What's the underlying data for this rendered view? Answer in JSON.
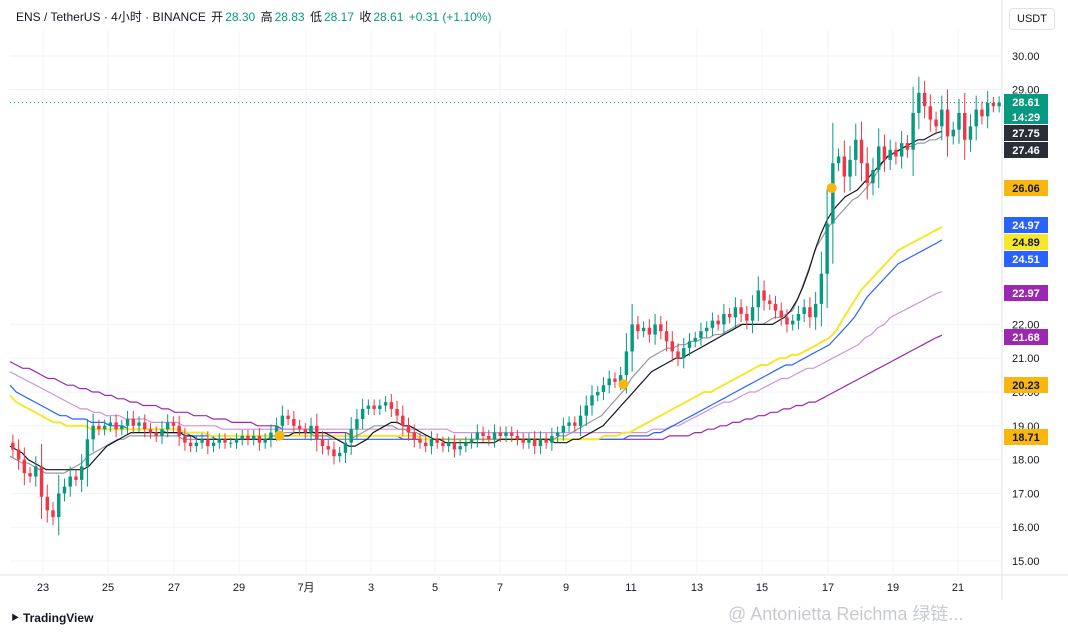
{
  "header": {
    "symbol": "ENS / TetherUS · 4小时 · BINANCE",
    "open_label": "开",
    "open": "28.30",
    "high_label": "高",
    "high": "28.83",
    "low_label": "低",
    "low": "28.17",
    "close_label": "收",
    "close": "28.61",
    "change": "+0.31 (+1.10%)"
  },
  "currency_button": "USDT",
  "branding": "TradingView",
  "watermark": "@ Antonietta Reichma 绿链...",
  "colors": {
    "up": "#089981",
    "down": "#f23645",
    "ema_gray": "#000000",
    "ema_yellow": "#f5e72a",
    "ema_blue": "#2962ff",
    "ema_pink": "#ce93d8",
    "ema_purple": "#9c27b0",
    "highlight": "#f7b70f"
  },
  "chart_data": {
    "type": "candlestick",
    "x_ticks": [
      "23",
      "25",
      "27",
      "29",
      "7月",
      "3",
      "5",
      "7",
      "9",
      "11",
      "13",
      "15",
      "17",
      "19",
      "21"
    ],
    "y_ticks": [
      "15.00",
      "16.00",
      "17.00",
      "18.00",
      "19.00",
      "20.00",
      "21.00",
      "22.00",
      "29.00",
      "30.00"
    ],
    "ylim": [
      14.5,
      30.5
    ],
    "last_price": 28.61,
    "countdown": "14:29",
    "price_labels": [
      {
        "value": "28.61",
        "color": "#089981",
        "text_color": "#ffffff"
      },
      {
        "value": "27.75",
        "color": "#2a2e39",
        "text_color": "#ffffff"
      },
      {
        "value": "27.46",
        "color": "#2a2e39",
        "text_color": "#ffffff"
      },
      {
        "value": "26.06",
        "color": "#f7b70f",
        "text_color": "#131722"
      },
      {
        "value": "24.97",
        "color": "#2962ff",
        "text_color": "#ffffff"
      },
      {
        "value": "24.89",
        "color": "#f5e72a",
        "text_color": "#131722"
      },
      {
        "value": "24.51",
        "color": "#2962ff",
        "text_color": "#ffffff"
      },
      {
        "value": "22.97",
        "color": "#9c27b0",
        "text_color": "#ffffff"
      },
      {
        "value": "21.68",
        "color": "#9c27b0",
        "text_color": "#ffffff"
      },
      {
        "value": "20.23",
        "color": "#f7b70f",
        "text_color": "#131722"
      },
      {
        "value": "18.71",
        "color": "#f7b70f",
        "text_color": "#131722"
      }
    ],
    "markers": [
      {
        "x": 8.15,
        "y": 18.71
      },
      {
        "x": 18.55,
        "y": 20.23
      },
      {
        "x": 24.85,
        "y": 26.06
      }
    ],
    "closes": [
      18.3,
      18.0,
      17.6,
      17.5,
      17.8,
      16.9,
      16.5,
      16.3,
      17.0,
      17.2,
      17.5,
      17.4,
      17.8,
      18.6,
      19.0,
      18.9,
      19.0,
      19.1,
      18.9,
      19.0,
      19.2,
      19.0,
      19.1,
      18.9,
      18.8,
      18.7,
      18.9,
      19.1,
      19.0,
      18.7,
      18.5,
      18.4,
      18.5,
      18.6,
      18.4,
      18.5,
      18.6,
      18.5,
      18.5,
      18.6,
      18.7,
      18.6,
      18.7,
      18.5,
      18.6,
      18.8,
      19.0,
      19.3,
      19.2,
      19.0,
      18.9,
      18.8,
      19.0,
      18.6,
      18.4,
      18.3,
      18.1,
      18.2,
      18.5,
      18.9,
      19.2,
      19.5,
      19.6,
      19.5,
      19.6,
      19.7,
      19.5,
      19.3,
      19.0,
      18.8,
      18.6,
      18.5,
      18.4,
      18.6,
      18.5,
      18.4,
      18.5,
      18.3,
      18.4,
      18.5,
      18.6,
      18.8,
      18.7,
      18.6,
      18.8,
      18.7,
      18.8,
      18.7,
      18.6,
      18.5,
      18.6,
      18.4,
      18.6,
      18.5,
      18.7,
      18.8,
      19.0,
      19.1,
      19.0,
      19.3,
      19.6,
      19.9,
      20.0,
      20.2,
      20.4,
      20.3,
      20.5,
      21.2,
      22.0,
      21.8,
      21.9,
      21.7,
      22.0,
      21.8,
      21.5,
      21.2,
      21.0,
      21.3,
      21.5,
      21.6,
      21.8,
      21.9,
      22.1,
      22.0,
      22.3,
      22.2,
      22.5,
      22.3,
      22.1,
      22.5,
      23.0,
      22.7,
      22.6,
      22.4,
      22.2,
      22.0,
      22.1,
      22.3,
      22.5,
      22.2,
      22.6,
      23.5,
      25.0,
      26.8,
      27.0,
      26.4,
      26.9,
      27.5,
      26.8,
      26.2,
      26.6,
      27.3,
      26.9,
      27.2,
      27.0,
      27.4,
      27.2,
      28.3,
      28.9,
      28.5,
      28.1,
      27.9,
      28.4,
      27.6,
      27.8,
      28.3,
      27.5,
      27.9,
      28.4,
      28.2,
      28.6,
      28.5,
      28.61
    ],
    "ema_gray_thin": [
      18.1,
      18.0,
      17.9,
      17.9,
      17.8,
      17.7,
      17.6,
      17.6,
      17.6,
      17.6,
      17.7,
      17.8,
      17.9,
      18.1,
      18.2,
      18.3,
      18.4,
      18.5,
      18.6,
      18.6,
      18.7,
      18.7,
      18.7,
      18.7,
      18.7,
      18.7,
      18.7,
      18.7,
      18.7,
      18.6,
      18.6,
      18.6,
      18.6,
      18.6,
      18.6,
      18.6,
      18.6,
      18.6,
      18.6,
      18.6,
      18.6,
      18.6,
      18.6,
      18.6,
      18.7,
      18.7,
      18.8,
      18.8,
      18.8,
      18.8,
      18.8,
      18.7,
      18.7,
      18.7,
      18.6,
      18.6,
      18.6,
      18.6,
      18.7,
      18.8,
      18.9,
      19.0,
      19.0,
      19.0,
      19.0,
      18.9,
      18.9,
      18.8,
      18.8,
      18.7,
      18.7,
      18.6,
      18.6,
      18.6,
      18.6,
      18.6,
      18.6,
      18.6,
      18.6,
      18.6,
      18.6,
      18.6,
      18.6,
      18.6,
      18.6,
      18.6,
      18.6,
      18.6,
      18.6,
      18.6,
      18.6,
      18.6,
      18.7,
      18.7,
      18.8,
      18.9,
      19.0,
      19.1,
      19.2,
      19.3,
      19.5,
      19.7,
      19.9,
      20.1,
      20.4,
      20.6,
      20.8,
      21.0,
      21.1,
      21.2,
      21.3,
      21.3,
      21.4,
      21.4,
      21.5,
      21.5,
      21.6,
      21.6,
      21.7,
      21.7,
      21.8,
      21.9,
      22.0,
      22.0,
      22.0,
      22.0,
      22.0,
      22.1,
      22.2,
      22.2,
      22.3,
      22.4,
      22.8,
      23.3,
      23.8,
      24.3,
      24.6,
      24.9,
      25.1,
      25.3,
      25.5,
      25.7,
      25.8,
      26.0,
      26.2,
      26.5,
      26.8,
      27.0,
      27.1,
      27.2,
      27.3,
      27.3,
      27.4,
      27.4,
      27.5,
      27.5,
      27.6
    ],
    "ema_black": [
      18.4,
      18.3,
      18.2,
      18.0,
      17.9,
      17.8,
      17.7,
      17.7,
      17.7,
      17.7,
      17.7,
      17.7,
      17.7,
      17.8,
      18.0,
      18.2,
      18.4,
      18.5,
      18.6,
      18.7,
      18.8,
      18.8,
      18.8,
      18.8,
      18.8,
      18.8,
      18.8,
      18.8,
      18.8,
      18.7,
      18.7,
      18.6,
      18.6,
      18.6,
      18.6,
      18.6,
      18.6,
      18.6,
      18.6,
      18.6,
      18.6,
      18.6,
      18.6,
      18.6,
      18.6,
      18.7,
      18.7,
      18.8,
      18.8,
      18.8,
      18.8,
      18.8,
      18.8,
      18.7,
      18.6,
      18.5,
      18.4,
      18.4,
      18.5,
      18.6,
      18.8,
      18.9,
      19.0,
      19.1,
      19.1,
      19.0,
      19.0,
      18.9,
      18.8,
      18.7,
      18.6,
      18.6,
      18.5,
      18.5,
      18.5,
      18.5,
      18.5,
      18.5,
      18.5,
      18.5,
      18.5,
      18.6,
      18.6,
      18.6,
      18.6,
      18.6,
      18.6,
      18.6,
      18.6,
      18.6,
      18.5,
      18.5,
      18.5,
      18.6,
      18.6,
      18.7,
      18.8,
      18.9,
      19.0,
      19.2,
      19.4,
      19.6,
      19.8,
      20.0,
      20.2,
      20.4,
      20.6,
      20.7,
      20.8,
      20.9,
      21.0,
      21.0,
      21.1,
      21.2,
      21.3,
      21.4,
      21.5,
      21.6,
      21.7,
      21.8,
      21.9,
      22.0,
      22.0,
      22.0,
      22.0,
      22.0,
      22.0,
      22.1,
      22.2,
      22.4,
      22.7,
      23.1,
      23.6,
      24.2,
      24.7,
      25.1,
      25.4,
      25.6,
      25.8,
      25.9,
      26.0,
      26.2,
      26.4,
      26.6,
      26.8,
      27.0,
      27.1,
      27.2,
      27.3,
      27.4,
      27.5,
      27.5,
      27.6,
      27.7,
      27.75
    ],
    "ema_yellow": [
      19.9,
      19.7,
      19.6,
      19.5,
      19.4,
      19.3,
      19.2,
      19.1,
      19.1,
      19.0,
      19.0,
      19.0,
      19.0,
      18.9,
      18.9,
      18.9,
      18.9,
      18.9,
      18.9,
      18.9,
      18.9,
      18.9,
      18.9,
      18.9,
      18.9,
      18.9,
      18.9,
      18.9,
      18.8,
      18.8,
      18.8,
      18.8,
      18.7,
      18.7,
      18.7,
      18.7,
      18.7,
      18.7,
      18.7,
      18.7,
      18.7,
      18.7,
      18.7,
      18.7,
      18.7,
      18.7,
      18.7,
      18.7,
      18.7,
      18.7,
      18.7,
      18.7,
      18.7,
      18.7,
      18.7,
      18.7,
      18.7,
      18.7,
      18.7,
      18.7,
      18.7,
      18.7,
      18.7,
      18.7,
      18.7,
      18.7,
      18.6,
      18.6,
      18.6,
      18.6,
      18.6,
      18.6,
      18.6,
      18.6,
      18.6,
      18.6,
      18.6,
      18.6,
      18.6,
      18.6,
      18.6,
      18.6,
      18.6,
      18.6,
      18.6,
      18.6,
      18.6,
      18.6,
      18.6,
      18.6,
      18.6,
      18.6,
      18.6,
      18.6,
      18.6,
      18.7,
      18.7,
      18.7,
      18.8,
      18.8,
      18.9,
      19.0,
      19.1,
      19.2,
      19.3,
      19.4,
      19.5,
      19.6,
      19.7,
      19.8,
      19.9,
      20.0,
      20.0,
      20.1,
      20.2,
      20.3,
      20.4,
      20.5,
      20.6,
      20.7,
      20.8,
      20.8,
      20.9,
      21.0,
      21.0,
      21.1,
      21.1,
      21.2,
      21.3,
      21.4,
      21.5,
      21.6,
      21.8,
      22.1,
      22.4,
      22.7,
      23.0,
      23.2,
      23.4,
      23.6,
      23.8,
      24.0,
      24.2,
      24.3,
      24.4,
      24.5,
      24.6,
      24.7,
      24.8,
      24.89
    ],
    "ema_blue": [
      20.2,
      20.0,
      19.9,
      19.8,
      19.7,
      19.6,
      19.5,
      19.4,
      19.3,
      19.3,
      19.2,
      19.2,
      19.2,
      19.1,
      19.1,
      19.1,
      19.0,
      19.0,
      19.0,
      18.9,
      18.9,
      18.9,
      18.9,
      18.9,
      18.9,
      18.8,
      18.8,
      18.8,
      18.8,
      18.7,
      18.7,
      18.7,
      18.7,
      18.6,
      18.6,
      18.6,
      18.6,
      18.6,
      18.6,
      18.6,
      18.6,
      18.6,
      18.6,
      18.6,
      18.6,
      18.6,
      18.6,
      18.6,
      18.6,
      18.6,
      18.6,
      18.6,
      18.6,
      18.6,
      18.6,
      18.6,
      18.6,
      18.6,
      18.6,
      18.6,
      18.6,
      18.6,
      18.6,
      18.6,
      18.6,
      18.6,
      18.6,
      18.6,
      18.6,
      18.6,
      18.6,
      18.6,
      18.6,
      18.6,
      18.6,
      18.6,
      18.6,
      18.6,
      18.6,
      18.6,
      18.6,
      18.6,
      18.6,
      18.6,
      18.6,
      18.6,
      18.6,
      18.6,
      18.6,
      18.6,
      18.6,
      18.6,
      18.6,
      18.6,
      18.6,
      18.6,
      18.6,
      18.6,
      18.6,
      18.7,
      18.7,
      18.7,
      18.7,
      18.8,
      18.8,
      18.9,
      19.0,
      19.1,
      19.2,
      19.3,
      19.4,
      19.5,
      19.6,
      19.7,
      19.8,
      19.9,
      20.0,
      20.1,
      20.2,
      20.3,
      20.4,
      20.5,
      20.6,
      20.7,
      20.8,
      20.8,
      20.9,
      21.0,
      21.1,
      21.2,
      21.3,
      21.4,
      21.6,
      21.8,
      22.0,
      22.2,
      22.5,
      22.8,
      23.0,
      23.2,
      23.4,
      23.6,
      23.8,
      23.9,
      24.0,
      24.1,
      24.2,
      24.3,
      24.4,
      24.51
    ],
    "ema_pink": [
      20.6,
      20.5,
      20.4,
      20.3,
      20.2,
      20.1,
      20.0,
      19.9,
      19.8,
      19.7,
      19.6,
      19.5,
      19.5,
      19.4,
      19.4,
      19.3,
      19.3,
      19.3,
      19.2,
      19.2,
      19.2,
      19.2,
      19.1,
      19.1,
      19.1,
      19.1,
      19.1,
      19.0,
      19.0,
      19.0,
      19.0,
      19.0,
      19.0,
      18.9,
      18.9,
      18.9,
      18.9,
      18.9,
      18.9,
      18.9,
      18.9,
      18.9,
      18.9,
      18.9,
      18.9,
      18.9,
      18.9,
      18.9,
      18.9,
      18.9,
      18.9,
      18.9,
      18.9,
      18.9,
      18.9,
      18.9,
      18.9,
      18.9,
      18.9,
      18.9,
      18.9,
      18.9,
      18.9,
      18.9,
      18.9,
      18.9,
      18.9,
      18.9,
      18.9,
      18.8,
      18.8,
      18.8,
      18.8,
      18.8,
      18.8,
      18.8,
      18.8,
      18.8,
      18.8,
      18.8,
      18.8,
      18.8,
      18.8,
      18.8,
      18.8,
      18.8,
      18.8,
      18.8,
      18.8,
      18.8,
      18.8,
      18.8,
      18.8,
      18.8,
      18.8,
      18.8,
      18.8,
      18.8,
      18.8,
      18.8,
      18.9,
      18.9,
      18.9,
      19.0,
      19.0,
      19.1,
      19.2,
      19.3,
      19.4,
      19.5,
      19.6,
      19.7,
      19.7,
      19.8,
      19.9,
      20.0,
      20.0,
      20.1,
      20.2,
      20.3,
      20.4,
      20.4,
      20.5,
      20.6,
      20.7,
      20.7,
      20.8,
      20.9,
      21.0,
      21.1,
      21.2,
      21.3,
      21.4,
      21.6,
      21.7,
      21.9,
      22.0,
      22.2,
      22.3,
      22.4,
      22.5,
      22.6,
      22.7,
      22.8,
      22.9,
      22.97
    ],
    "ema_purple": [
      20.9,
      20.8,
      20.7,
      20.7,
      20.6,
      20.5,
      20.4,
      20.4,
      20.3,
      20.2,
      20.2,
      20.1,
      20.1,
      20.0,
      20.0,
      19.9,
      19.9,
      19.8,
      19.8,
      19.7,
      19.7,
      19.6,
      19.6,
      19.6,
      19.5,
      19.5,
      19.4,
      19.4,
      19.4,
      19.3,
      19.3,
      19.3,
      19.2,
      19.2,
      19.2,
      19.1,
      19.1,
      19.1,
      19.1,
      19.0,
      19.0,
      19.0,
      19.0,
      18.9,
      18.9,
      18.9,
      18.9,
      18.9,
      18.8,
      18.8,
      18.8,
      18.8,
      18.8,
      18.8,
      18.7,
      18.7,
      18.7,
      18.7,
      18.7,
      18.7,
      18.7,
      18.7,
      18.6,
      18.6,
      18.6,
      18.6,
      18.6,
      18.6,
      18.6,
      18.6,
      18.6,
      18.6,
      18.6,
      18.6,
      18.6,
      18.6,
      18.6,
      18.6,
      18.6,
      18.6,
      18.6,
      18.6,
      18.6,
      18.6,
      18.6,
      18.6,
      18.6,
      18.6,
      18.6,
      18.6,
      18.6,
      18.6,
      18.6,
      18.6,
      18.6,
      18.6,
      18.6,
      18.6,
      18.6,
      18.6,
      18.6,
      18.6,
      18.6,
      18.6,
      18.7,
      18.7,
      18.7,
      18.7,
      18.8,
      18.8,
      18.9,
      18.9,
      19.0,
      19.0,
      19.1,
      19.1,
      19.2,
      19.2,
      19.3,
      19.3,
      19.4,
      19.4,
      19.5,
      19.5,
      19.6,
      19.6,
      19.7,
      19.7,
      19.8,
      19.9,
      20.0,
      20.1,
      20.2,
      20.3,
      20.4,
      20.5,
      20.6,
      20.7,
      20.8,
      20.9,
      21.0,
      21.1,
      21.2,
      21.3,
      21.4,
      21.5,
      21.6,
      21.68
    ]
  }
}
